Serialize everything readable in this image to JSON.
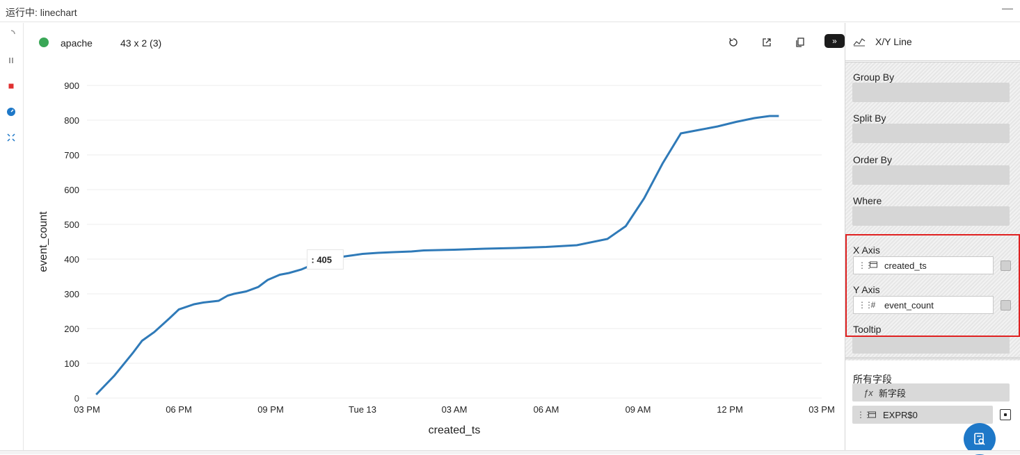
{
  "window": {
    "title": "运行中: linechart",
    "minimize": "—"
  },
  "header": {
    "table_name": "apache",
    "table_size": "43 x 2 (3)",
    "status_color": "#3aa757",
    "expand_label": "»"
  },
  "toolbar": {
    "icons": [
      "reset-icon",
      "export-icon",
      "copy-icon",
      "expand-panel-icon"
    ]
  },
  "sidebar_left": {
    "icons": [
      "loading-spinner-icon",
      "pause-icon",
      "stop-icon",
      "dashboard-icon",
      "fullscreen-icon"
    ]
  },
  "tooltip": {
    "text": ": 405"
  },
  "right_panel": {
    "plugin_name": "X/Y Line",
    "group_by": "Group By",
    "split_by": "Split By",
    "order_by": "Order By",
    "where": "Where",
    "x_axis": {
      "label": "X Axis",
      "field": "created_ts"
    },
    "y_axis": {
      "label": "Y Axis",
      "type": "#",
      "field": "event_count"
    },
    "tooltip_label": "Tooltip",
    "all_fields": {
      "label": "所有字段",
      "new_field": "新字段",
      "type_symbol": "ƒx",
      "expr": "EXPR$0"
    }
  },
  "chart_data": {
    "type": "line",
    "xlabel": "created_ts",
    "ylabel": "event_count",
    "x_ticks": [
      "03 PM",
      "06 PM",
      "09 PM",
      "Tue 13",
      "03 AM",
      "06 AM",
      "09 AM",
      "12 PM",
      "03 PM"
    ],
    "ylim": [
      0,
      900
    ],
    "y_ticks": [
      0,
      100,
      200,
      300,
      400,
      500,
      600,
      700,
      800,
      900
    ],
    "grid": true,
    "line_color": "#2f7ab8",
    "x_unit": "hours since 03 PM",
    "x": [
      0.3,
      0.9,
      1.5,
      1.8,
      2.2,
      2.7,
      3.0,
      3.5,
      3.8,
      4.3,
      4.6,
      4.8,
      5.2,
      5.6,
      5.9,
      6.3,
      6.6,
      7.0,
      7.4,
      7.8,
      8.2,
      8.6,
      9.0,
      9.5,
      10.0,
      10.6,
      11.0,
      12.0,
      13.0,
      14.0,
      15.0,
      16.0,
      17.0,
      17.6,
      18.2,
      18.8,
      19.4,
      20.0,
      20.6,
      21.2,
      21.8,
      22.3,
      22.6
    ],
    "y": [
      10,
      65,
      130,
      165,
      190,
      230,
      255,
      270,
      275,
      280,
      295,
      300,
      307,
      320,
      340,
      355,
      360,
      370,
      385,
      395,
      405,
      410,
      415,
      418,
      420,
      422,
      425,
      427,
      430,
      432,
      435,
      440,
      458,
      495,
      575,
      675,
      762,
      772,
      782,
      795,
      806,
      812,
      812
    ]
  }
}
